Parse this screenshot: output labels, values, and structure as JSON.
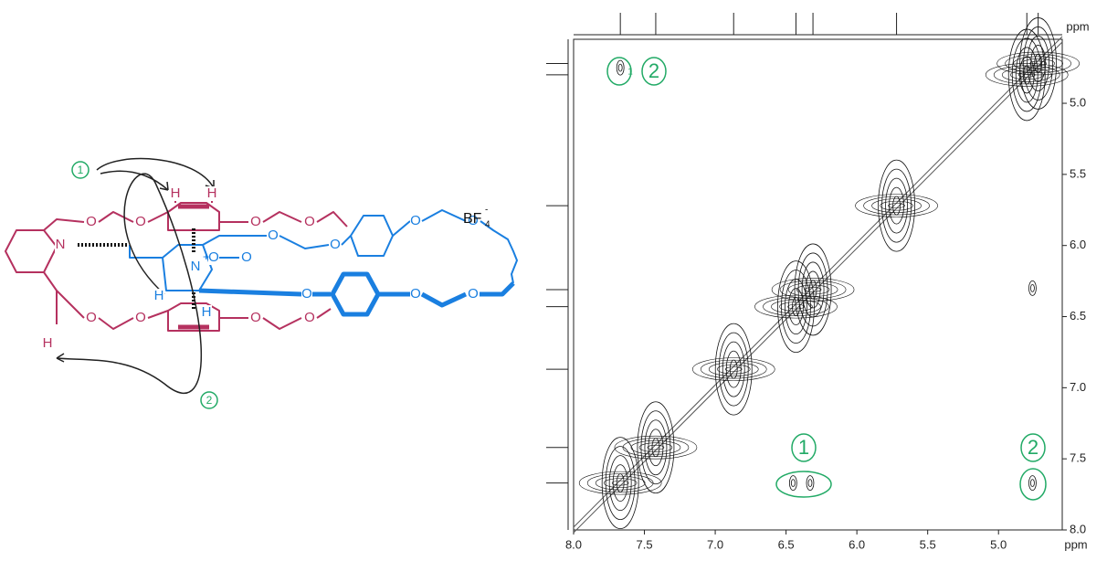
{
  "structure": {
    "atoms": [
      "N",
      "H",
      "H",
      "H",
      "H",
      "H",
      "O",
      "O",
      "O",
      "O",
      "O",
      "O",
      "O",
      "O",
      "O",
      "O",
      "O",
      "O",
      "O",
      "O",
      "O",
      "O",
      "O",
      "N"
    ],
    "n_charge": "+",
    "counter_ion": "BF",
    "counter_sub": "4",
    "counter_sup": "-",
    "callouts": [
      "1",
      "2"
    ]
  },
  "spectrum": {
    "xlim": [
      8.0,
      4.55
    ],
    "ylim": [
      4.55,
      8.0
    ],
    "xticks": [
      {
        "value": 8,
        "label": "8.0"
      },
      7.5,
      {
        "value": 7,
        "label": "7.0"
      },
      6.5,
      {
        "value": 6,
        "label": "6.0"
      },
      5.5,
      {
        "value": 5,
        "label": "5.0"
      }
    ],
    "yticks": [
      {
        "value": 5,
        "label": "5.0"
      },
      5.5,
      {
        "value": 6,
        "label": "6.0"
      },
      6.5,
      {
        "value": 7,
        "label": "7.0"
      },
      7.5,
      {
        "value": 8,
        "label": "8.0"
      }
    ],
    "x_unit": "ppm",
    "y_unit": "ppm",
    "peaks": [
      {
        "x": 7.67,
        "y": 7.67
      },
      {
        "x": 7.42,
        "y": 7.42
      },
      {
        "x": 6.87,
        "y": 6.87
      },
      {
        "x": 6.43,
        "y": 6.43
      },
      {
        "x": 6.31,
        "y": 6.31
      },
      {
        "x": 5.72,
        "y": 5.72
      },
      {
        "x": 4.8,
        "y": 4.8
      },
      {
        "x": 4.72,
        "y": 4.72
      },
      {
        "x": 6.45,
        "y": 7.67
      },
      {
        "x": 6.33,
        "y": 7.67
      },
      {
        "x": 4.76,
        "y": 7.67
      },
      {
        "x": 7.67,
        "y": 4.75
      },
      {
        "x": 4.76,
        "y": 6.3
      }
    ],
    "annotations": [
      "1",
      "2",
      "1",
      "2"
    ]
  }
}
